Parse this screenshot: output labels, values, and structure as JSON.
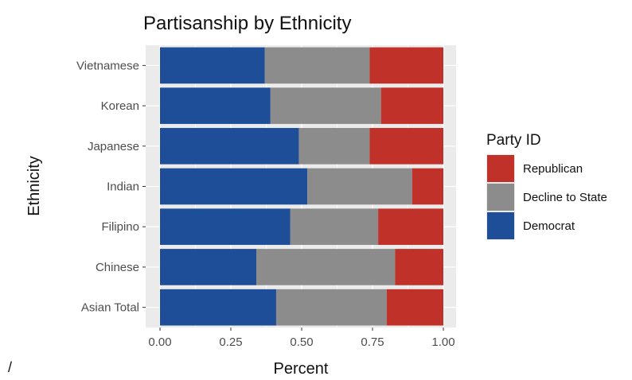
{
  "chart_data": {
    "type": "bar",
    "orientation": "horizontal",
    "stacked": true,
    "title": "Partisanship by Ethnicity",
    "xlabel": "Percent",
    "ylabel": "Ethnicity",
    "xlim": [
      0,
      1
    ],
    "xticks": [
      "0.00",
      "0.25",
      "0.50",
      "0.75",
      "1.00"
    ],
    "categories": [
      "Vietnamese",
      "Korean",
      "Japanese",
      "Indian",
      "Filipino",
      "Chinese",
      "Asian Total"
    ],
    "series": [
      {
        "name": "Democrat",
        "color": "#1f4e99",
        "values": [
          0.37,
          0.39,
          0.49,
          0.52,
          0.46,
          0.34,
          0.41
        ]
      },
      {
        "name": "Decline to State",
        "color": "#8c8c8c",
        "values": [
          0.37,
          0.39,
          0.25,
          0.37,
          0.31,
          0.49,
          0.39
        ]
      },
      {
        "name": "Republican",
        "color": "#c0312a",
        "values": [
          0.26,
          0.22,
          0.26,
          0.11,
          0.23,
          0.17,
          0.2
        ]
      }
    ],
    "legend": {
      "title": "Party ID",
      "position": "right",
      "order": [
        "Republican",
        "Decline to State",
        "Democrat"
      ]
    },
    "panel_background": "#ebebeb",
    "grid": true
  },
  "footnote": "/"
}
